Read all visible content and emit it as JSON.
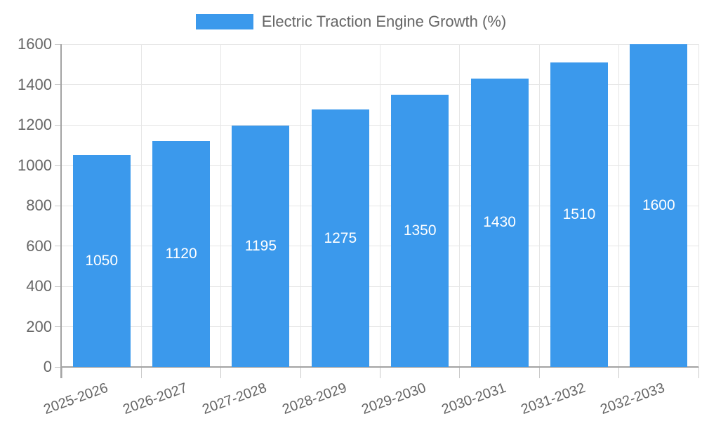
{
  "chart_data": {
    "type": "bar",
    "title": "",
    "legend_label": "Electric Traction Engine Growth (%)",
    "legend_position": "top",
    "categories": [
      "2025-2026",
      "2026-2027",
      "2027-2028",
      "2028-2029",
      "2029-2030",
      "2030-2031",
      "2031-2032",
      "2032-2033"
    ],
    "values": [
      1050,
      1120,
      1195,
      1275,
      1350,
      1430,
      1510,
      1600
    ],
    "ylim": [
      0,
      1600
    ],
    "yticks": [
      0,
      200,
      400,
      600,
      800,
      1000,
      1200,
      1400,
      1600
    ],
    "grid": true,
    "bar_value_labels_shown": true,
    "colors": {
      "bar": "#3B99EC",
      "bar_label": "#FFFFFF",
      "grid_line": "#E6E6E6",
      "tick_line": "#C9C9C9",
      "axis_line": "#A3A3A3",
      "text": "#666666",
      "background": "#FFFFFF"
    }
  }
}
